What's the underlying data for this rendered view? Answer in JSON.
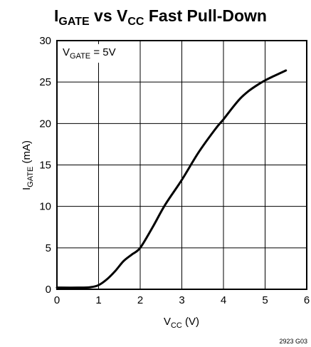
{
  "chart_data": {
    "type": "line",
    "title": {
      "part1_main": "I",
      "part1_sub": "GATE",
      "part2_main": " vs V",
      "part2_sub": "CC",
      "part3_main": " Fast Pull-Down"
    },
    "xlabel": {
      "main": "V",
      "sub": "CC",
      "tail": " (V)"
    },
    "ylabel": {
      "main": "I",
      "sub": "GATE",
      "tail": " (mA)"
    },
    "annotation": {
      "main": "V",
      "sub": "GATE",
      "tail": " = 5V"
    },
    "figure_id": "2923 G03",
    "xlim": [
      0,
      6
    ],
    "ylim": [
      0,
      30
    ],
    "x_ticks": [
      0,
      1,
      2,
      3,
      4,
      5,
      6
    ],
    "y_ticks": [
      0,
      5,
      10,
      15,
      20,
      25,
      30
    ],
    "grid": true,
    "series": [
      {
        "x": [
          0,
          0.5,
          0.8,
          1.0,
          1.2,
          1.4,
          1.6,
          1.8,
          2.0,
          2.3,
          2.6,
          3.0,
          3.4,
          3.8,
          4.0,
          4.2,
          4.4,
          4.6,
          4.8,
          5.0,
          5.2,
          5.5
        ],
        "y": [
          0.2,
          0.2,
          0.25,
          0.5,
          1.2,
          2.2,
          3.4,
          4.2,
          5.0,
          7.5,
          10.2,
          13.2,
          16.5,
          19.3,
          20.5,
          21.8,
          23.0,
          23.9,
          24.6,
          25.2,
          25.7,
          26.4
        ]
      }
    ]
  }
}
